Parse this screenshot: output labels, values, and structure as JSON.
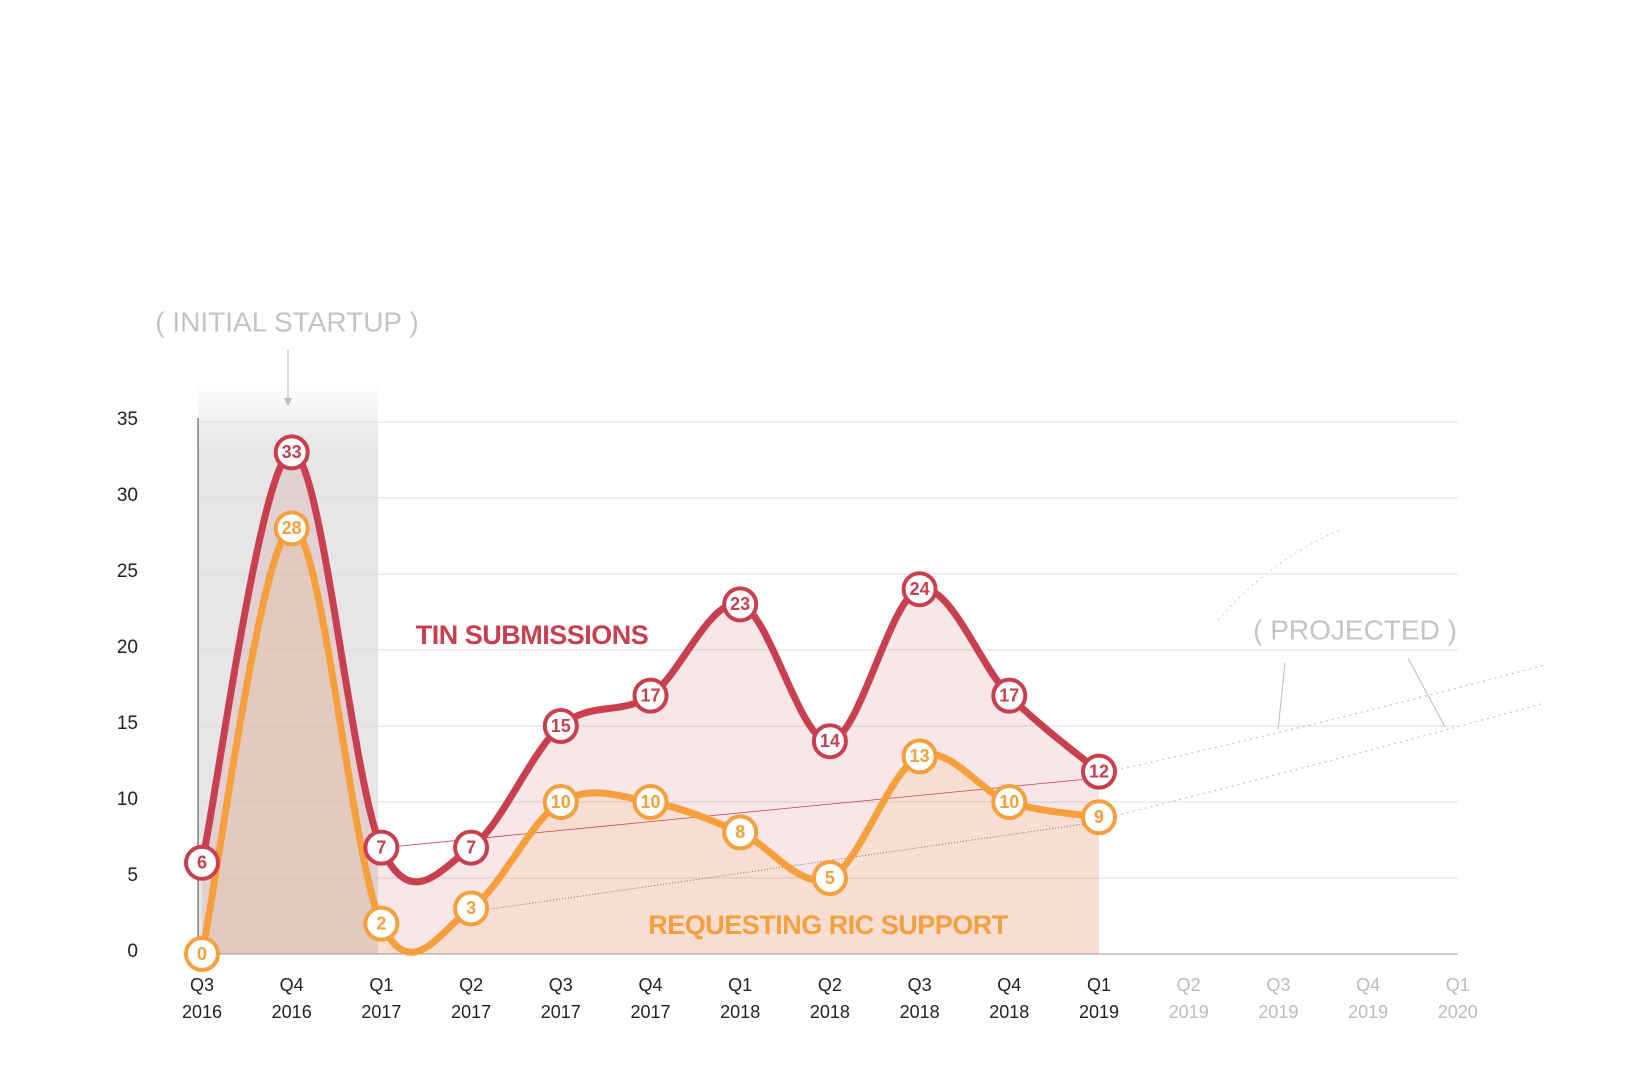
{
  "chart_data": {
    "type": "line",
    "annotations": [
      "( INITIAL STARTUP )",
      "( PROJECTED )"
    ],
    "categories": [
      "Q3 2016",
      "Q4 2016",
      "Q1 2017",
      "Q2 2017",
      "Q3 2017",
      "Q4 2017",
      "Q1 2018",
      "Q2 2018",
      "Q3 2018",
      "Q4 2018",
      "Q1 2019",
      "Q2 2019",
      "Q3 2019",
      "Q4 2019",
      "Q1 2020"
    ],
    "series": [
      {
        "name": "TIN SUBMISSIONS",
        "color": "#c8404f",
        "values": [
          6,
          33,
          7,
          7,
          15,
          17,
          23,
          14,
          24,
          17,
          12,
          null,
          null,
          null,
          null
        ]
      },
      {
        "name": "REQUESTING RIC SUPPORT",
        "color": "#f5a03c",
        "values": [
          0,
          28,
          2,
          3,
          10,
          10,
          8,
          5,
          13,
          10,
          9,
          null,
          null,
          null,
          null
        ]
      }
    ],
    "ylim": [
      0,
      35
    ],
    "yticks": [
      0,
      5,
      10,
      15,
      20,
      25,
      30,
      35
    ],
    "grid": true
  }
}
